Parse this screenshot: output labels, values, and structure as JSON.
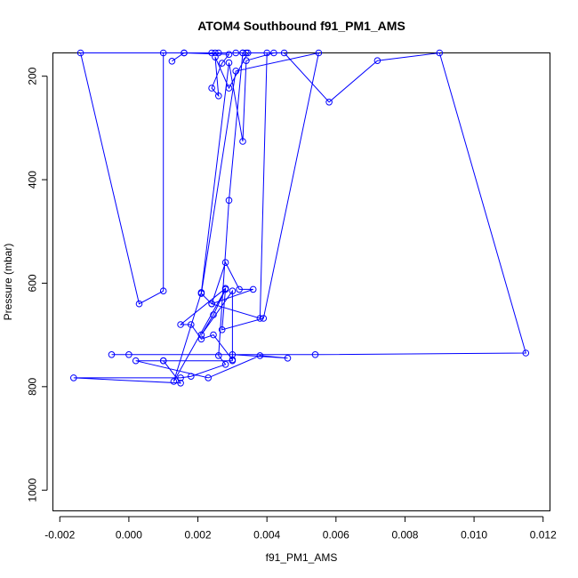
{
  "chart_data": {
    "type": "line",
    "title": "ATOM4 Southbound f91_PM1_AMS",
    "xlabel": "f91_PM1_AMS",
    "ylabel": "Pressure (mbar)",
    "xlim": [
      -0.0022,
      0.0122
    ],
    "ylim": [
      1040,
      155
    ],
    "y_reversed": true,
    "xticks": [
      -0.002,
      0.0,
      0.002,
      0.004,
      0.006,
      0.008,
      0.01,
      0.012
    ],
    "xtick_labels": [
      "-0.002",
      "0.000",
      "0.002",
      "0.004",
      "0.006",
      "0.008",
      "0.010",
      "0.012"
    ],
    "yticks": [
      200,
      400,
      600,
      800,
      1000
    ],
    "ytick_labels": [
      "200",
      "400",
      "600",
      "800",
      "1000"
    ],
    "grid": false,
    "color": "#0000ff",
    "series": [
      {
        "x": [
          0.00125,
          0.0016,
          0.0029,
          0.0027,
          0.0024,
          0.0026,
          0.0025,
          0.0029,
          0.00345,
          0.0042,
          0.0034,
          0.0033,
          0.0029,
          0.0021,
          0.0013,
          0.0028,
          0.00245,
          0.0021,
          0.003,
          0.003,
          0.00245,
          0.0021,
          0.0018,
          0.0015,
          0.0028,
          0.0027,
          0.0039,
          0.0055,
          0.0031,
          0.0021,
          0.0024,
          0.0036,
          0.0032,
          0.0028,
          0.0024,
          0.0038,
          0.004,
          0.0045,
          0.0058,
          0.0072,
          0.009,
          0.0115,
          0.0054,
          0.0,
          -0.0005,
          0.003,
          0.0046,
          0.0038,
          0.0023,
          0.0002,
          0.001,
          0.003,
          0.001,
          0.0015,
          -0.0016,
          0.0015,
          0.0018,
          0.0028,
          0.0026,
          0.0029,
          0.0033,
          0.0034,
          0.0024,
          0.001,
          0.001,
          0.0003,
          -0.0014,
          0.0016,
          0.0025,
          0.0031,
          0.0033,
          0.0026
        ],
        "y": [
          171,
          155,
          158,
          175,
          223,
          238,
          163,
          223,
          155,
          155,
          170,
          326,
          174,
          618,
          790,
          612,
          661,
          700,
          615,
          748,
          700,
          708,
          680,
          680,
          610,
          690,
          668,
          155,
          190,
          620,
          640,
          612,
          612,
          560,
          640,
          668,
          155,
          155,
          250,
          170,
          155,
          735,
          738,
          738,
          738,
          738,
          745,
          740,
          783,
          750,
          750,
          750,
          750,
          793,
          783,
          783,
          780,
          757,
          740,
          440,
          155,
          155,
          155,
          155,
          615,
          640,
          155,
          155,
          155,
          155,
          155,
          155
        ]
      }
    ]
  }
}
